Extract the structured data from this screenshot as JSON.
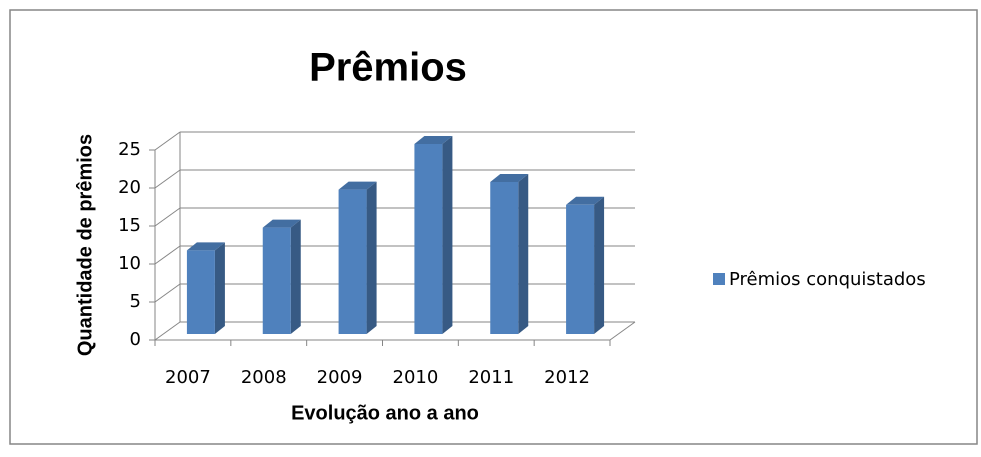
{
  "chart_data": {
    "type": "bar",
    "title": "Prêmios",
    "x_label": "Evolução ano a ano",
    "y_label": "Quantidade de prêmios",
    "categories": [
      "2007",
      "2008",
      "2009",
      "2010",
      "2011",
      "2012"
    ],
    "series": [
      {
        "name": "Prêmios conquistados",
        "color": "#4f81bd",
        "values": [
          11,
          14,
          19,
          25,
          20,
          17
        ]
      }
    ],
    "ylim": [
      0,
      25
    ],
    "yticks": [
      0,
      5,
      10,
      15,
      20,
      25
    ],
    "grid": true,
    "legend": "right"
  }
}
